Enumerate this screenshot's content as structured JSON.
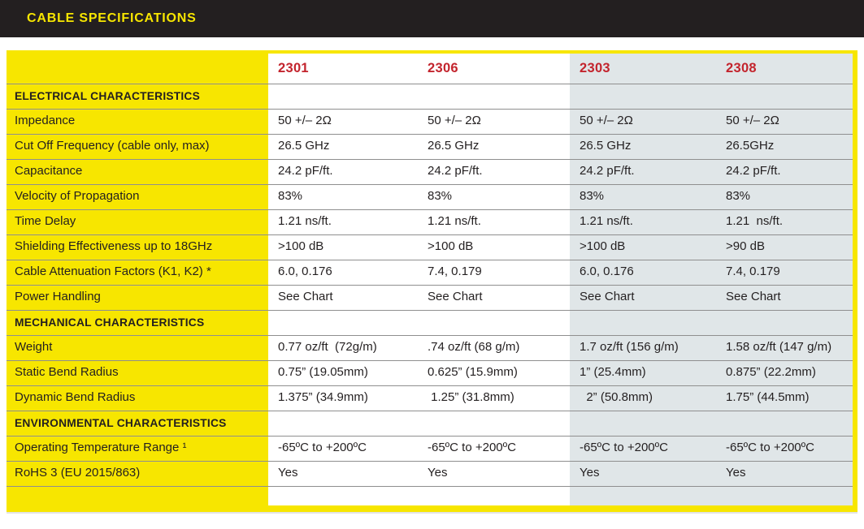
{
  "header": {
    "title": "CABLE SPECIFICATIONS"
  },
  "colors": {
    "banner_bg": "#231f20",
    "accent_yellow": "#f7e600",
    "column_header_red": "#c3242d",
    "alt_column_bg": "#e0e6e8",
    "row_line": "#8f8f8f",
    "text": "#231f20"
  },
  "table": {
    "columns": [
      "2301",
      "2306",
      "2303",
      "2308"
    ],
    "rows": [
      {
        "type": "section",
        "label": "ELECTRICAL CHARACTERISTICS",
        "values": [
          "",
          "",
          "",
          ""
        ]
      },
      {
        "type": "data",
        "label": "Impedance",
        "values": [
          "50 +/– 2Ω",
          "50 +/– 2Ω",
          "50 +/– 2Ω",
          "50 +/– 2Ω"
        ]
      },
      {
        "type": "data",
        "label": "Cut Off Frequency (cable only, max)",
        "values": [
          "26.5 GHz",
          "26.5 GHz",
          "26.5 GHz",
          "26.5GHz"
        ]
      },
      {
        "type": "data",
        "label": "Capacitance",
        "values": [
          "24.2 pF/ft.",
          "24.2 pF/ft.",
          "24.2 pF/ft.",
          "24.2 pF/ft."
        ]
      },
      {
        "type": "data",
        "label": "Velocity of Propagation",
        "values": [
          "83%",
          "83%",
          "83%",
          "83%"
        ]
      },
      {
        "type": "data",
        "label": "Time Delay",
        "values": [
          "1.21 ns/ft.",
          "1.21 ns/ft.",
          "1.21 ns/ft.",
          "1.21  ns/ft."
        ]
      },
      {
        "type": "data",
        "label": "Shielding Effectiveness up to 18GHz",
        "values": [
          ">100 dB",
          ">100 dB",
          ">100 dB",
          ">90 dB"
        ]
      },
      {
        "type": "data",
        "label": "Cable Attenuation Factors (K1, K2) *",
        "values": [
          "6.0, 0.176",
          "7.4, 0.179",
          "6.0, 0.176",
          "7.4, 0.179"
        ]
      },
      {
        "type": "data",
        "label": "Power Handling",
        "values": [
          "See Chart",
          "See Chart",
          "See Chart",
          "See Chart"
        ]
      },
      {
        "type": "section",
        "label": "MECHANICAL CHARACTERISTICS",
        "values": [
          "",
          "",
          "",
          ""
        ]
      },
      {
        "type": "data",
        "label": "Weight",
        "values": [
          "0.77 oz/ft  (72g/m)",
          ".74 oz/ft (68 g/m)",
          "1.7 oz/ft (156 g/m)",
          "1.58 oz/ft (147 g/m)"
        ]
      },
      {
        "type": "data",
        "label": "Static Bend Radius",
        "values": [
          "0.75” (19.05mm)",
          "0.625” (15.9mm)",
          "1” (25.4mm)",
          "0.875” (22.2mm)"
        ]
      },
      {
        "type": "data",
        "label": "Dynamic Bend Radius",
        "values": [
          "1.375” (34.9mm)",
          " 1.25” (31.8mm)",
          "  2” (50.8mm)",
          "1.75” (44.5mm)"
        ]
      },
      {
        "type": "section",
        "label": "ENVIRONMENTAL CHARACTERISTICS",
        "values": [
          "",
          "",
          "",
          ""
        ]
      },
      {
        "type": "data",
        "label": "Operating Temperature Range ¹",
        "values": [
          "-65ºC to +200ºC",
          "-65ºC to +200ºC",
          "-65ºC to +200ºC",
          "-65ºC to +200ºC"
        ]
      },
      {
        "type": "data",
        "label": "RoHS 3 (EU 2015/863)",
        "values": [
          "Yes",
          "Yes",
          "Yes",
          "Yes"
        ]
      },
      {
        "type": "filler",
        "label": "",
        "values": [
          "",
          "",
          "",
          ""
        ]
      }
    ]
  }
}
